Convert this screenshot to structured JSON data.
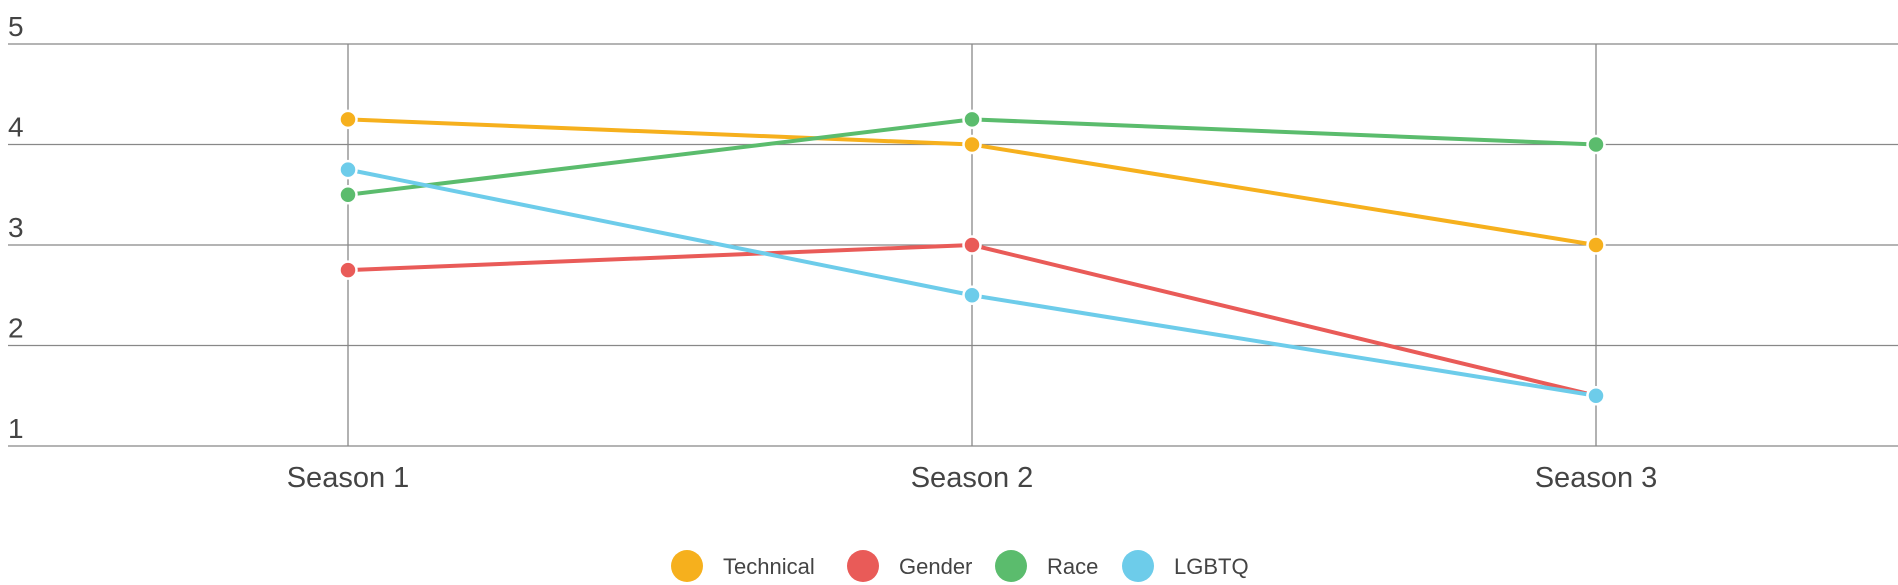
{
  "chart_data": {
    "type": "line",
    "title": "",
    "xlabel": "",
    "ylabel": "",
    "categories": [
      "Season 1",
      "Season 2",
      "Season 3"
    ],
    "ylim": [
      1,
      5
    ],
    "yticks": [
      1,
      2,
      3,
      4,
      5
    ],
    "grid": true,
    "legend_position": "bottom-center",
    "series": [
      {
        "name": "Technical",
        "color": "#F6B01D",
        "values": [
          4.25,
          4.0,
          3.0
        ]
      },
      {
        "name": "Gender",
        "color": "#E95B58",
        "values": [
          2.75,
          3.0,
          1.5
        ]
      },
      {
        "name": "Race",
        "color": "#5BBC6D",
        "values": [
          3.5,
          4.25,
          4.0
        ]
      },
      {
        "name": "LGBTQ",
        "color": "#6DCCEA",
        "values": [
          3.75,
          2.5,
          1.5
        ]
      }
    ]
  }
}
